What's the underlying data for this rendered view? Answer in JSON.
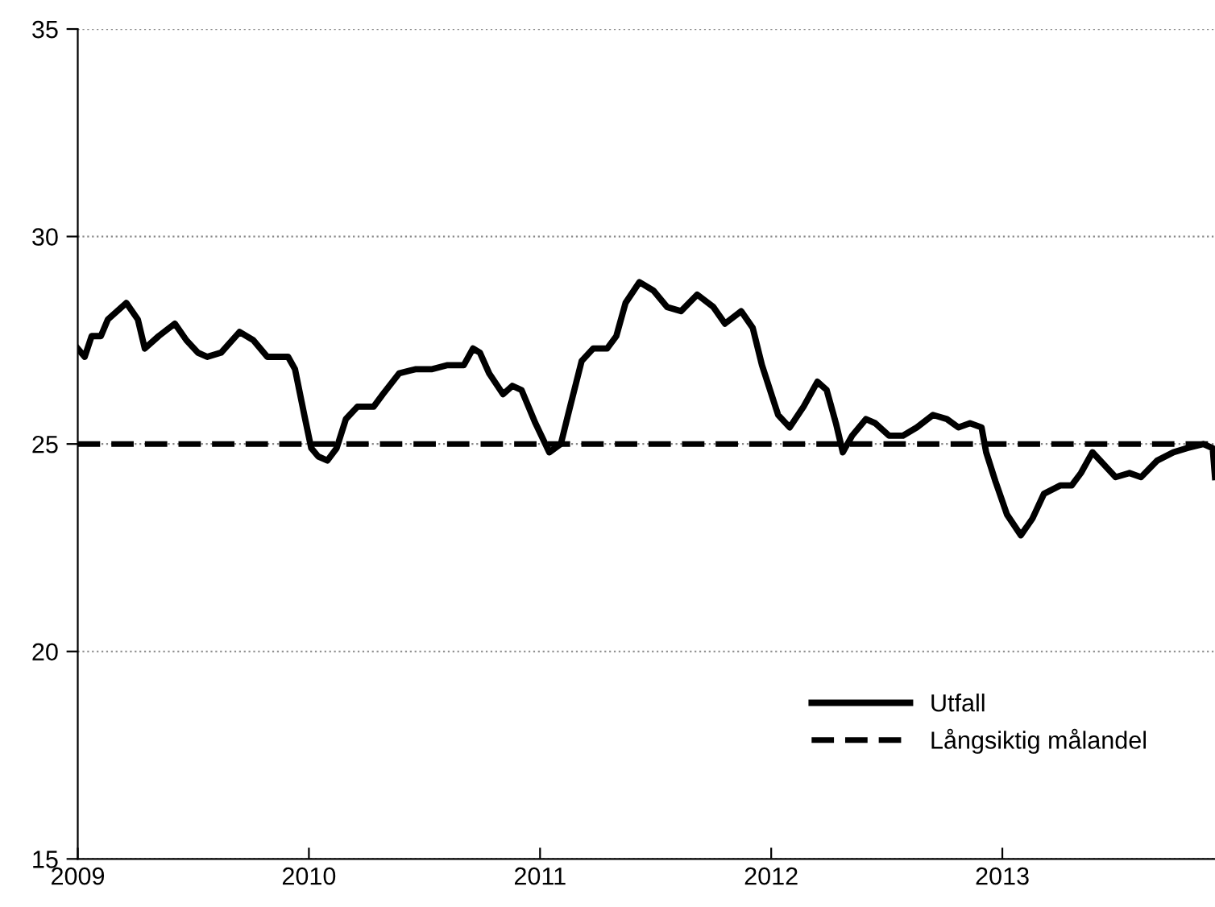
{
  "chart_data": {
    "type": "line",
    "x": [
      2009.0,
      2009.03,
      2009.06,
      2009.1,
      2009.13,
      2009.17,
      2009.21,
      2009.26,
      2009.29,
      2009.35,
      2009.42,
      2009.47,
      2009.52,
      2009.56,
      2009.62,
      2009.7,
      2009.76,
      2009.82,
      2009.86,
      2009.91,
      2009.94,
      2009.98,
      2010.01,
      2010.04,
      2010.08,
      2010.12,
      2010.16,
      2010.21,
      2010.28,
      2010.32,
      2010.39,
      2010.46,
      2010.53,
      2010.6,
      2010.67,
      2010.71,
      2010.74,
      2010.78,
      2010.84,
      2010.88,
      2010.92,
      2010.98,
      2011.04,
      2011.09,
      2011.13,
      2011.18,
      2011.23,
      2011.29,
      2011.33,
      2011.37,
      2011.43,
      2011.49,
      2011.55,
      2011.61,
      2011.68,
      2011.75,
      2011.8,
      2011.87,
      2011.92,
      2011.96,
      2012.03,
      2012.08,
      2012.14,
      2012.2,
      2012.24,
      2012.28,
      2012.31,
      2012.35,
      2012.41,
      2012.45,
      2012.51,
      2012.57,
      2012.63,
      2012.7,
      2012.76,
      2012.81,
      2012.86,
      2012.91,
      2012.93,
      2012.97,
      2013.02,
      2013.08,
      2013.13,
      2013.18,
      2013.25,
      2013.3,
      2013.34,
      2013.39,
      2013.44,
      2013.49,
      2013.55,
      2013.6,
      2013.67,
      2013.74,
      2013.8,
      2013.87,
      2013.91,
      2013.92
    ],
    "series": [
      {
        "name": "Utfall",
        "color": "#000000",
        "values": [
          27.3,
          27.1,
          27.6,
          27.6,
          28.0,
          28.2,
          28.4,
          28.0,
          27.3,
          27.6,
          27.9,
          27.5,
          27.2,
          27.1,
          27.2,
          27.7,
          27.5,
          27.1,
          27.1,
          27.1,
          26.8,
          25.7,
          24.9,
          24.7,
          24.6,
          24.9,
          25.6,
          25.9,
          25.9,
          26.2,
          26.7,
          26.8,
          26.8,
          26.9,
          26.9,
          27.3,
          27.2,
          26.7,
          26.2,
          26.4,
          26.3,
          25.5,
          24.8,
          25.0,
          25.9,
          27.0,
          27.3,
          27.3,
          27.6,
          28.4,
          28.9,
          28.7,
          28.3,
          28.2,
          28.6,
          28.3,
          27.9,
          28.2,
          27.8,
          26.9,
          25.7,
          25.4,
          25.9,
          26.5,
          26.3,
          25.5,
          24.8,
          25.2,
          25.6,
          25.5,
          25.2,
          25.2,
          25.4,
          25.7,
          25.6,
          25.4,
          25.5,
          25.4,
          24.8,
          24.1,
          23.3,
          22.8,
          23.2,
          23.8,
          24.0,
          24.0,
          24.3,
          24.8,
          24.5,
          24.2,
          24.3,
          24.2,
          24.6,
          24.8,
          24.9,
          25.0,
          24.9,
          24.2
        ]
      }
    ],
    "xlim": [
      2009,
      2013.92
    ],
    "xticks": [
      2009,
      2010,
      2011,
      2012,
      2013
    ],
    "ylim": [
      15,
      35
    ],
    "yticks": [
      15,
      20,
      25,
      30,
      35
    ],
    "ref_lines": [
      {
        "axis": "y",
        "value": 25,
        "label": "Långsiktig målandel",
        "color": "#000000",
        "line_style": "dashed"
      }
    ],
    "grid": "y",
    "legend": "bottom right",
    "line_style": "solid",
    "marker": "none"
  }
}
